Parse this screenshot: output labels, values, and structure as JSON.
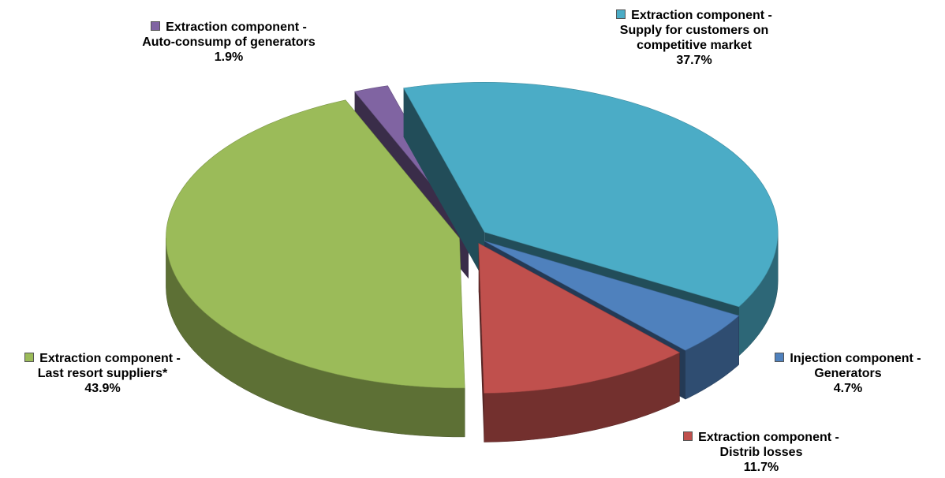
{
  "chart_data": {
    "type": "pie",
    "categories": [
      "Extraction component - Supply for customers on competitive market",
      "Injection component - Generators",
      "Extraction component - Distrib losses",
      "Extraction component - Last resort suppliers*",
      "Extraction component - Auto-consump of generators"
    ],
    "values": [
      37.7,
      4.7,
      11.7,
      43.9,
      1.9
    ],
    "value_labels": [
      "37.7%",
      "4.7%",
      "11.7%",
      "43.9%",
      "1.9%"
    ],
    "colors": [
      "#4bacc6",
      "#4f81bd",
      "#c0504d",
      "#9bbb59",
      "#8064a2"
    ]
  }
}
